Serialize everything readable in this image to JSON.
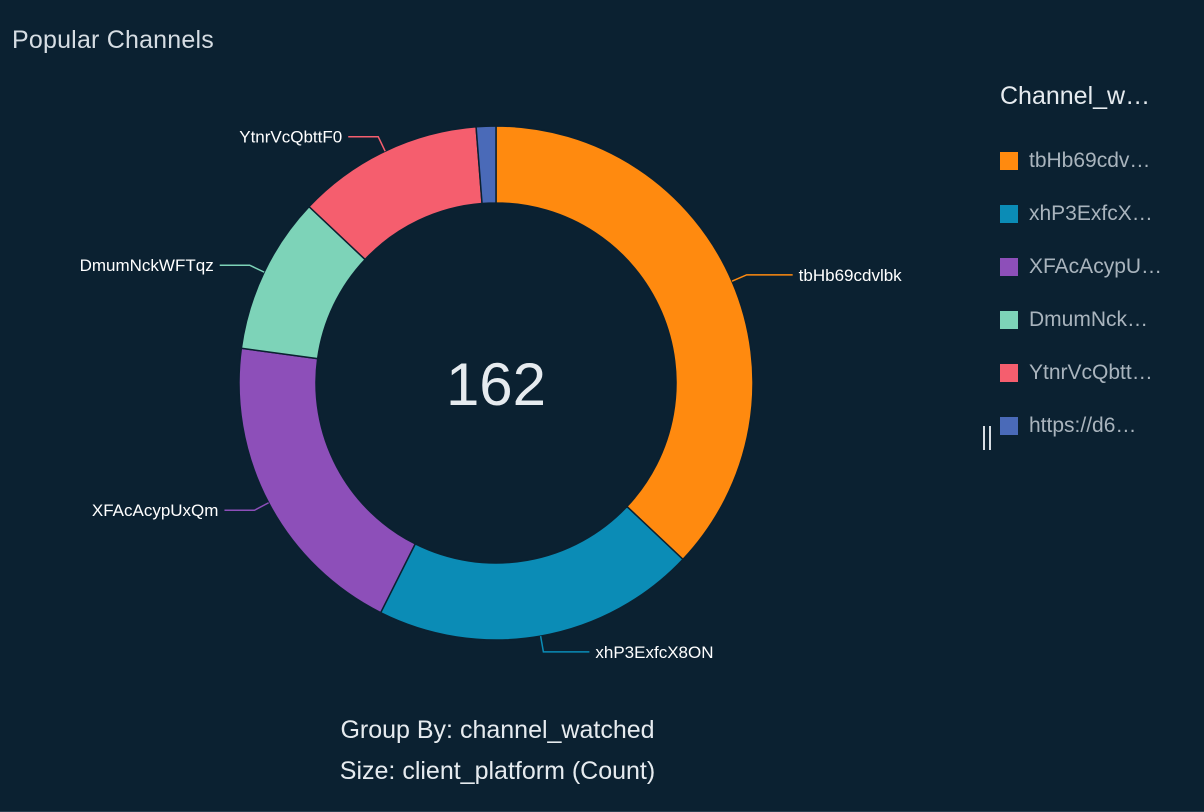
{
  "panel": {
    "title": "Popular Channels",
    "footer": {
      "group_by": "Group By: channel_watched",
      "size": "Size: client_platform (Count)"
    }
  },
  "legend": {
    "title": "Channel_w…",
    "items": [
      {
        "label": "tbHb69cdv…",
        "color": "#ff8a0f"
      },
      {
        "label": "xhP3ExfcX…",
        "color": "#0b8cb6"
      },
      {
        "label": "XFAcAcypU…",
        "color": "#8d4fb9"
      },
      {
        "label": "DmumNck…",
        "color": "#7dd3b8"
      },
      {
        "label": "YtnrVcQbtt…",
        "color": "#f55e6e"
      },
      {
        "label": "https://d6…",
        "color": "#4a6ab8"
      }
    ]
  },
  "chart_data": {
    "type": "pie",
    "donut": true,
    "total_label": "162",
    "categories": [
      "tbHb69cdvlbk",
      "xhP3ExfcX8ON",
      "XFAcAcypUxQm",
      "DmumNckWFTqz",
      "YtnrVcQbttF0",
      "https://d6…"
    ],
    "values": [
      60,
      33,
      32,
      16,
      19,
      2
    ],
    "colors": [
      "#ff8a0f",
      "#0b8cb6",
      "#8d4fb9",
      "#7dd3b8",
      "#f55e6e",
      "#4a6ab8"
    ],
    "slice_labels": [
      "tbHb69cdvlbk",
      "xhP3ExfcX8ON",
      "XFAcAcypUxQm",
      "DmumNckWFTqz",
      "YtnrVcQbttF0",
      ""
    ],
    "legend_position": "right"
  }
}
